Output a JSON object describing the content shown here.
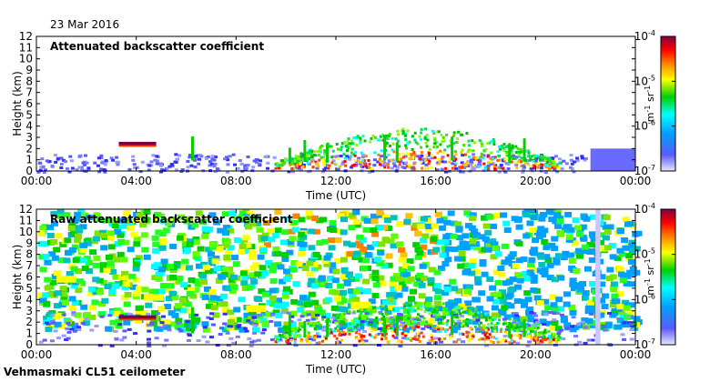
{
  "date_label": "23 Mar 2016",
  "footer_label": "Vehmasmaki CL51 ceilometer",
  "colors": {
    "background": "#ffffff",
    "low": "#5a5aff",
    "mid": "#00c000",
    "high": "#ff0000",
    "max": "#800040"
  },
  "chart_data": [
    {
      "type": "heatmap",
      "title": "Attenuated backscatter coefficient",
      "xlabel": "Time (UTC)",
      "ylabel": "Height (km)",
      "xticks": [
        "00:00",
        "04:00",
        "08:00",
        "12:00",
        "16:00",
        "20:00",
        "00:00"
      ],
      "yticks": [
        "0",
        "1",
        "2",
        "3",
        "4",
        "5",
        "6",
        "7",
        "8",
        "9",
        "10",
        "11",
        "12"
      ],
      "xlim_hours": [
        0,
        24
      ],
      "ylim_km": [
        0,
        12
      ],
      "colorbar": {
        "min_exp": -7,
        "max_exp": -4,
        "labels": [
          "10-7",
          "10-6",
          "10-5",
          "10-4"
        ],
        "unit": "m-1 sr-1"
      },
      "features": [
        {
          "name": "boundary-layer",
          "t0": 0,
          "t1": 22,
          "h0": 0,
          "h1": 1.6,
          "level": "low"
        },
        {
          "name": "cloud-layer-0330",
          "t0": 3.3,
          "t1": 4.8,
          "h0": 2.2,
          "h1": 2.6,
          "level": "high"
        },
        {
          "name": "cloud-column-0620",
          "t0": 6.1,
          "t1": 6.3,
          "h0": 1.6,
          "h1": 3.4,
          "level": "mid"
        },
        {
          "name": "cloud-field-afternoon",
          "t0": 9.5,
          "t1": 21,
          "h0": 0.5,
          "h1": 4,
          "level": "high"
        }
      ]
    },
    {
      "type": "heatmap",
      "title": "Raw attenuated backscatter coefficient",
      "xlabel": "Time (UTC)",
      "ylabel": "Height (km)",
      "xticks": [
        "00:00",
        "04:00",
        "08:00",
        "12:00",
        "16:00",
        "20:00",
        "00:00"
      ],
      "yticks": [
        "0",
        "1",
        "2",
        "3",
        "4",
        "5",
        "6",
        "7",
        "8",
        "9",
        "10",
        "11",
        "12"
      ],
      "xlim_hours": [
        0,
        24
      ],
      "ylim_km": [
        0,
        12
      ],
      "colorbar": {
        "min_exp": -7,
        "max_exp": -4,
        "labels": [
          "10-7",
          "10-6",
          "10-5",
          "10-4"
        ],
        "unit": "m-1 sr-1"
      },
      "features": [
        {
          "name": "noise-field",
          "t0": 0,
          "t1": 24,
          "h0": 2,
          "h1": 12,
          "level": "mid"
        },
        {
          "name": "cloud-layer-0330",
          "t0": 3.3,
          "t1": 4.8,
          "h0": 2.2,
          "h1": 2.6,
          "level": "high"
        },
        {
          "name": "cloud-field-afternoon",
          "t0": 9.5,
          "t1": 21,
          "h0": 0.5,
          "h1": 4,
          "level": "high"
        },
        {
          "name": "missing-data-2230",
          "t0": 22.4,
          "t1": 22.6,
          "h0": 0,
          "h1": 12,
          "level": "none"
        }
      ]
    }
  ]
}
